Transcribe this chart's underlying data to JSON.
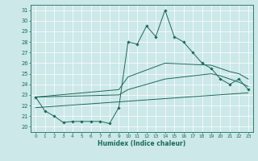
{
  "xlabel": "Humidex (Indice chaleur)",
  "xlim": [
    -0.5,
    23.5
  ],
  "ylim": [
    19.5,
    31.5
  ],
  "yticks": [
    20,
    21,
    22,
    23,
    24,
    25,
    26,
    27,
    28,
    29,
    30,
    31
  ],
  "xticks": [
    0,
    1,
    2,
    3,
    4,
    5,
    6,
    7,
    8,
    9,
    10,
    11,
    12,
    13,
    14,
    15,
    16,
    17,
    18,
    19,
    20,
    21,
    22,
    23
  ],
  "bg_color": "#cce8e8",
  "line_color": "#1a6b5a",
  "line1_x": [
    0,
    1,
    2,
    3,
    4,
    5,
    6,
    7,
    8,
    9,
    10,
    11,
    12,
    13,
    14,
    15,
    16,
    17,
    18,
    19,
    20,
    21,
    22,
    23
  ],
  "line1_y": [
    22.8,
    21.5,
    21.0,
    20.4,
    20.5,
    20.5,
    20.5,
    20.5,
    20.3,
    21.8,
    28.0,
    27.8,
    29.5,
    28.5,
    31.0,
    28.5,
    28.0,
    27.0,
    26.0,
    25.5,
    24.5,
    24.0,
    24.5,
    23.5
  ],
  "line2_x": [
    0,
    9,
    10,
    14,
    19,
    20,
    21,
    22,
    23
  ],
  "line2_y": [
    22.8,
    23.5,
    24.7,
    26.0,
    25.8,
    25.5,
    25.2,
    25.0,
    24.5
  ],
  "line3_x": [
    0,
    9,
    10,
    14,
    19,
    20,
    21,
    22,
    23
  ],
  "line3_y": [
    22.8,
    23.0,
    23.5,
    24.5,
    25.0,
    24.8,
    24.5,
    24.2,
    23.8
  ],
  "line4_x": [
    0,
    23
  ],
  "line4_y": [
    21.8,
    23.2
  ]
}
